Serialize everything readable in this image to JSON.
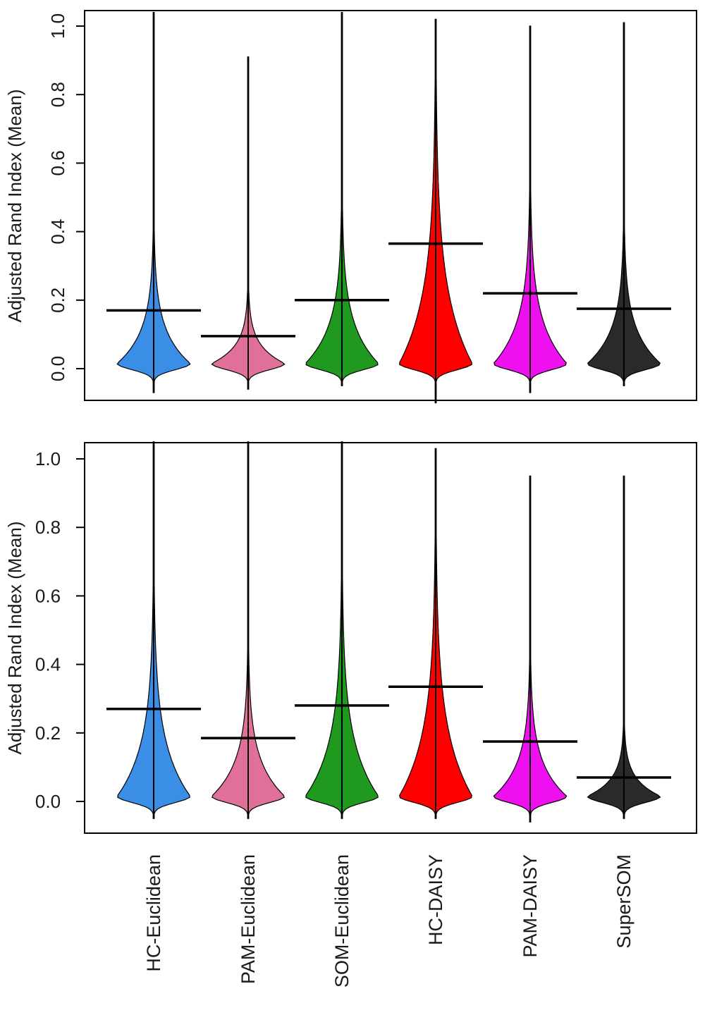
{
  "figure": {
    "categories": [
      "HC-Euclidean",
      "PAM-Euclidean",
      "SOM-Euclidean",
      "HC-DAISY",
      "PAM-DAISY",
      "SuperSOM"
    ],
    "colors": [
      "#3a8ee6",
      "#e0709a",
      "#1f9a1f",
      "#ff0000",
      "#ee10ee",
      "#2a2a2a"
    ]
  },
  "chart_data": [
    {
      "type": "violin",
      "ylabel": "Adjusted Rand Index (Mean)",
      "ylim": [
        -0.08,
        1.05
      ],
      "yticks": [
        "0.0",
        "0.2",
        "0.4",
        "0.6",
        "0.8",
        "1.0"
      ],
      "xticks_shown": false,
      "series": [
        {
          "category": "HC-Euclidean",
          "mean": 0.17,
          "min": -0.07,
          "max": 1.04
        },
        {
          "category": "PAM-Euclidean",
          "mean": 0.095,
          "min": -0.06,
          "max": 0.91
        },
        {
          "category": "SOM-Euclidean",
          "mean": 0.2,
          "min": -0.05,
          "max": 1.04
        },
        {
          "category": "HC-DAISY",
          "mean": 0.365,
          "min": -0.1,
          "max": 1.02
        },
        {
          "category": "PAM-DAISY",
          "mean": 0.22,
          "min": -0.07,
          "max": 1.0
        },
        {
          "category": "SuperSOM",
          "mean": 0.175,
          "min": -0.05,
          "max": 1.01
        }
      ]
    },
    {
      "type": "violin",
      "ylabel": "Adjusted Rand Index (Mean)",
      "ylim": [
        -0.08,
        1.05
      ],
      "yticks": [
        "0.0",
        "0.2",
        "0.4",
        "0.6",
        "0.8",
        "1.0"
      ],
      "xticks_shown": true,
      "series": [
        {
          "category": "HC-Euclidean",
          "mean": 0.27,
          "min": -0.05,
          "max": 1.05
        },
        {
          "category": "PAM-Euclidean",
          "mean": 0.185,
          "min": -0.05,
          "max": 1.05
        },
        {
          "category": "SOM-Euclidean",
          "mean": 0.28,
          "min": -0.05,
          "max": 1.05
        },
        {
          "category": "HC-DAISY",
          "mean": 0.335,
          "min": -0.05,
          "max": 1.03
        },
        {
          "category": "PAM-DAISY",
          "mean": 0.175,
          "min": -0.06,
          "max": 0.95
        },
        {
          "category": "SuperSOM",
          "mean": 0.07,
          "min": -0.05,
          "max": 0.95
        }
      ]
    }
  ]
}
